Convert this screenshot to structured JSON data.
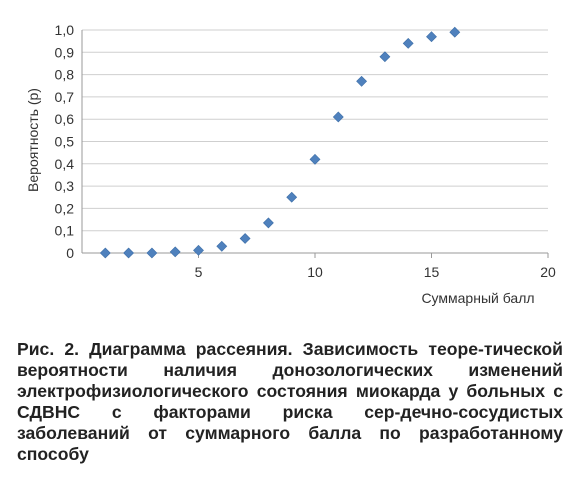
{
  "chart_data": {
    "type": "scatter",
    "title": "",
    "xlabel": "Суммарный балл",
    "ylabel": "Вероятность (р)",
    "xlim": [
      0,
      20
    ],
    "ylim": [
      0,
      1.0
    ],
    "xticks": [
      5,
      10,
      15,
      20
    ],
    "xtick_labels": [
      "5",
      "10",
      "15",
      "20"
    ],
    "yticks": [
      0,
      0.1,
      0.2,
      0.3,
      0.4,
      0.5,
      0.6,
      0.7,
      0.8,
      0.9,
      1.0
    ],
    "ytick_labels": [
      "0",
      "0,1",
      "0,2",
      "0,3",
      "0,4",
      "0,5",
      "0,6",
      "0,7",
      "0,8",
      "0,9",
      "1,0"
    ],
    "grid": "horizontal",
    "marker": "diamond",
    "marker_color": "#4f81bd",
    "series": [
      {
        "x": [
          1,
          2,
          3,
          4,
          5,
          6,
          7,
          8,
          9,
          10,
          11,
          12,
          13,
          14,
          15,
          16
        ],
        "y": [
          0.0,
          0.0,
          0.0,
          0.005,
          0.012,
          0.03,
          0.065,
          0.135,
          0.25,
          0.42,
          0.61,
          0.77,
          0.88,
          0.94,
          0.97,
          0.99
        ]
      }
    ]
  },
  "caption": "Рис. 2. Диаграмма рассеяния. Зависимость теоре-­тической вероятности наличия донозологических изменений электрофизиологического состояния миокарда у больных с СДВНС с факторами риска сер-­дечно-сосудистых заболеваний от суммарного балла по разработанному способу"
}
